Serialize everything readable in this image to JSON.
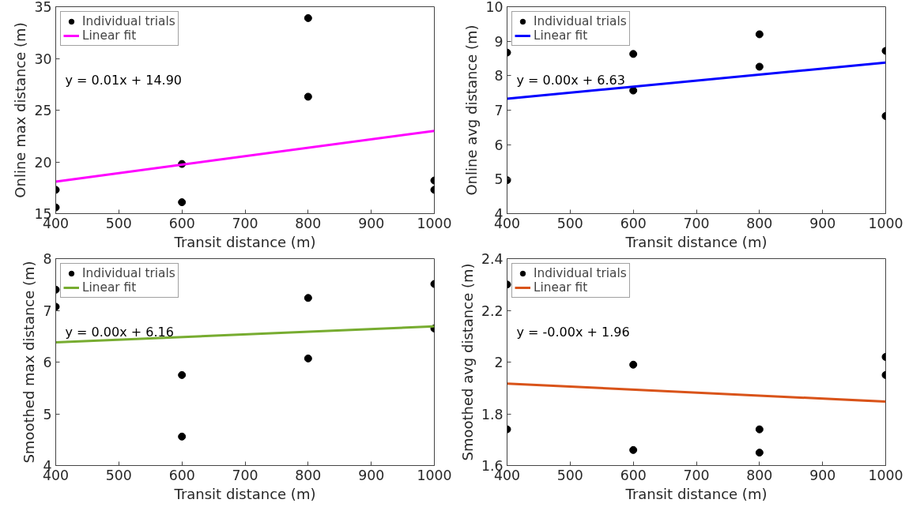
{
  "chart_data": [
    {
      "type": "scatter",
      "xlabel": "Transit distance (m)",
      "ylabel": "Online max distance (m)",
      "xlim": [
        400,
        1000
      ],
      "ylim": [
        15,
        35
      ],
      "xticks": [
        400,
        500,
        600,
        700,
        800,
        900,
        1000
      ],
      "yticks": [
        15,
        20,
        25,
        30,
        35
      ],
      "grid": false,
      "legend": "top left",
      "annotations": [
        "y = 0.01x + 14.90"
      ],
      "series": [
        {
          "name": "Individual trials",
          "marker": "circle",
          "color": "#000000",
          "x": [
            400,
            400,
            600,
            600,
            800,
            800,
            1000,
            1000
          ],
          "values": [
            17.3,
            15.6,
            19.8,
            16.1,
            33.9,
            26.3,
            18.2,
            17.3
          ]
        },
        {
          "name": "Linear fit",
          "type": "line",
          "color": "#ff00ff",
          "x": [
            400,
            1000
          ],
          "values": [
            18.1,
            23.0
          ]
        }
      ]
    },
    {
      "type": "scatter",
      "xlabel": "Transit distance (m)",
      "ylabel": "Online avg distance (m)",
      "xlim": [
        400,
        1000
      ],
      "ylim": [
        4,
        10
      ],
      "xticks": [
        400,
        500,
        600,
        700,
        800,
        900,
        1000
      ],
      "yticks": [
        4,
        5,
        6,
        7,
        8,
        9,
        10
      ],
      "grid": false,
      "legend": "top left",
      "annotations": [
        "y = 0.00x + 6.63"
      ],
      "series": [
        {
          "name": "Individual trials",
          "marker": "circle",
          "color": "#000000",
          "x": [
            400,
            400,
            600,
            600,
            800,
            800,
            1000,
            1000
          ],
          "values": [
            8.67,
            4.97,
            8.63,
            7.57,
            9.2,
            8.26,
            8.72,
            6.83
          ]
        },
        {
          "name": "Linear fit",
          "type": "line",
          "color": "#0000ff",
          "x": [
            400,
            1000
          ],
          "values": [
            7.33,
            8.38
          ]
        }
      ]
    },
    {
      "type": "scatter",
      "xlabel": "Transit distance (m)",
      "ylabel": "Smoothed max distance (m)",
      "xlim": [
        400,
        1000
      ],
      "ylim": [
        4,
        8
      ],
      "xticks": [
        400,
        500,
        600,
        700,
        800,
        900,
        1000
      ],
      "yticks": [
        4,
        5,
        6,
        7,
        8
      ],
      "grid": false,
      "legend": "top left",
      "annotations": [
        "y = 0.00x + 6.16"
      ],
      "series": [
        {
          "name": "Individual trials",
          "marker": "circle",
          "color": "#000000",
          "x": [
            400,
            400,
            600,
            600,
            800,
            800,
            1000,
            1000
          ],
          "values": [
            7.4,
            7.07,
            5.75,
            4.56,
            7.24,
            6.07,
            7.51,
            6.65
          ]
        },
        {
          "name": "Linear fit",
          "type": "line",
          "color": "#77ac30",
          "x": [
            400,
            1000
          ],
          "values": [
            6.38,
            6.69
          ]
        }
      ]
    },
    {
      "type": "scatter",
      "xlabel": "Transit distance (m)",
      "ylabel": "Smoothed avg distance (m)",
      "xlim": [
        400,
        1000
      ],
      "ylim": [
        1.6,
        2.4
      ],
      "xticks": [
        400,
        500,
        600,
        700,
        800,
        900,
        1000
      ],
      "yticks": [
        1.6,
        1.8,
        2,
        2.2,
        2.4
      ],
      "grid": false,
      "legend": "top left",
      "annotations": [
        "y = -0.00x + 1.96"
      ],
      "series": [
        {
          "name": "Individual trials",
          "marker": "circle",
          "color": "#000000",
          "x": [
            400,
            400,
            600,
            600,
            800,
            800,
            1000,
            1000
          ],
          "values": [
            2.3,
            1.74,
            1.99,
            1.66,
            1.74,
            1.65,
            2.02,
            1.95
          ]
        },
        {
          "name": "Linear fit",
          "type": "line",
          "color": "#d95319",
          "x": [
            400,
            1000
          ],
          "values": [
            1.917,
            1.847
          ]
        }
      ]
    }
  ]
}
